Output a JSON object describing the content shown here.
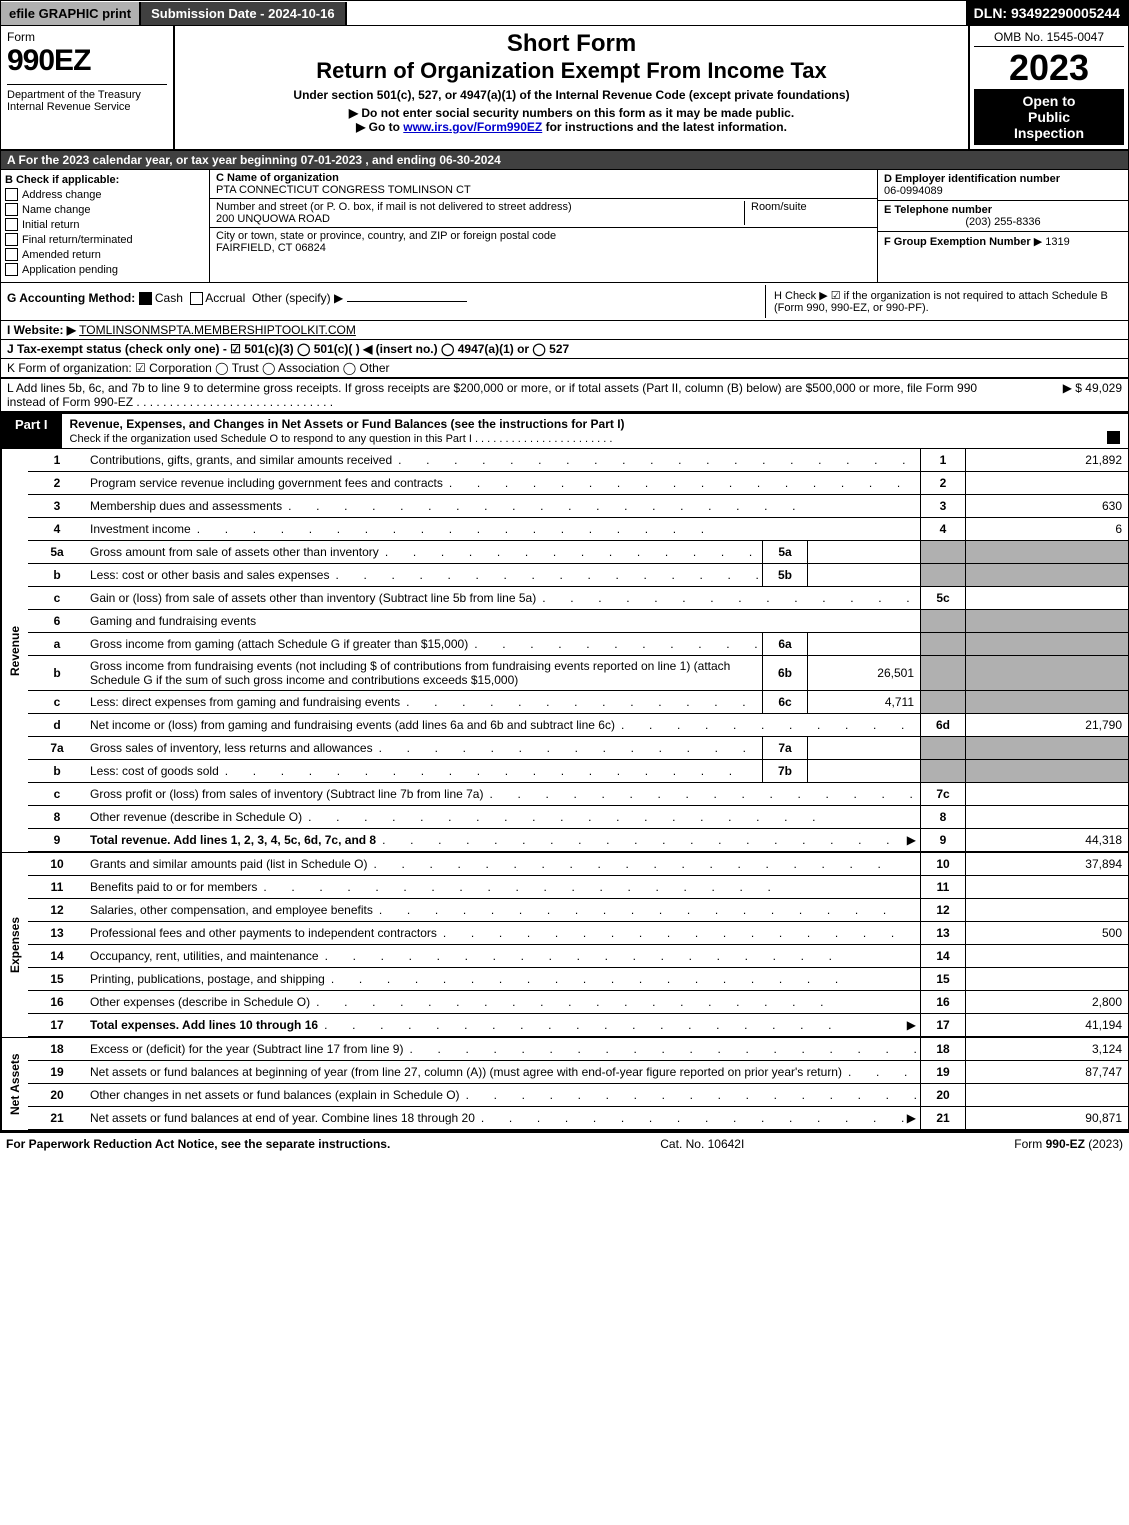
{
  "colors": {
    "black": "#000000",
    "white": "#ffffff",
    "grey_bg": "#b0b0b0",
    "dark_grey": "#404040",
    "link": "#0000cc"
  },
  "top_bar": {
    "efile": "efile GRAPHIC print",
    "submission": "Submission Date - 2024-10-16",
    "dln": "DLN: 93492290005244"
  },
  "header": {
    "form_word": "Form",
    "form_num": "990EZ",
    "dept": "Department of the Treasury",
    "irs": "Internal Revenue Service",
    "short_form": "Short Form",
    "title": "Return of Organization Exempt From Income Tax",
    "under_section": "Under section 501(c), 527, or 4947(a)(1) of the Internal Revenue Code (except private foundations)",
    "note1": "▶ Do not enter social security numbers on this form as it may be made public.",
    "note2": "▶ Go to www.irs.gov/Form990EZ for instructions and the latest information.",
    "note2_link": "www.irs.gov/Form990EZ",
    "omb": "OMB No. 1545-0047",
    "year": "2023",
    "inspect1": "Open to",
    "inspect2": "Public",
    "inspect3": "Inspection"
  },
  "section_a": "A  For the 2023 calendar year, or tax year beginning 07-01-2023  , and ending 06-30-2024",
  "section_b": {
    "title": "B  Check if applicable:",
    "items": [
      "Address change",
      "Name change",
      "Initial return",
      "Final return/terminated",
      "Amended return",
      "Application pending"
    ]
  },
  "section_c": {
    "c_label": "C Name of organization",
    "c_val": "PTA CONNECTICUT CONGRESS TOMLINSON CT",
    "addr_label": "Number and street (or P. O. box, if mail is not delivered to street address)",
    "addr_val": "200 UNQUOWA ROAD",
    "room_label": "Room/suite",
    "city_label": "City or town, state or province, country, and ZIP or foreign postal code",
    "city_val": "FAIRFIELD, CT  06824"
  },
  "section_right": {
    "d_label": "D Employer identification number",
    "d_val": "06-0994089",
    "e_label": "E Telephone number",
    "e_val": "(203) 255-8336",
    "f_label": "F Group Exemption Number",
    "f_val": "▶ 1319"
  },
  "section_g": {
    "label": "G Accounting Method:",
    "cash": "Cash",
    "accrual": "Accrual",
    "other": "Other (specify) ▶"
  },
  "section_h": "H  Check ▶ ☑ if the organization is not required to attach Schedule B (Form 990, 990-EZ, or 990-PF).",
  "section_i": {
    "label": "I Website: ▶",
    "val": "TOMLINSONMSPTA.MEMBERSHIPTOOLKIT.COM"
  },
  "section_j": "J Tax-exempt status (check only one) - ☑ 501(c)(3) ◯ 501(c)(  ) ◀ (insert no.) ◯ 4947(a)(1) or ◯ 527",
  "section_k": "K Form of organization:  ☑ Corporation  ◯ Trust  ◯ Association  ◯ Other",
  "section_l": {
    "text": "L Add lines 5b, 6c, and 7b to line 9 to determine gross receipts. If gross receipts are $200,000 or more, or if total assets (Part II, column (B) below) are $500,000 or more, file Form 990 instead of Form 990-EZ",
    "val": "▶ $ 49,029"
  },
  "part1": {
    "tab": "Part I",
    "title": "Revenue, Expenses, and Changes in Net Assets or Fund Balances (see the instructions for Part I)",
    "check_line": "Check if the organization used Schedule O to respond to any question in this Part I",
    "vertical_rev": "Revenue",
    "vertical_exp": "Expenses",
    "vertical_net": "Net Assets"
  },
  "lines": [
    {
      "n": "1",
      "t": "Contributions, gifts, grants, and similar amounts received",
      "rn": "1",
      "v": "21,892"
    },
    {
      "n": "2",
      "t": "Program service revenue including government fees and contracts",
      "rn": "2",
      "v": ""
    },
    {
      "n": "3",
      "t": "Membership dues and assessments",
      "rn": "3",
      "v": "630"
    },
    {
      "n": "4",
      "t": "Investment income",
      "rn": "4",
      "v": "6"
    },
    {
      "n": "5a",
      "t": "Gross amount from sale of assets other than inventory",
      "mn": "5a",
      "mv": "",
      "grey": true
    },
    {
      "n": "b",
      "t": "Less: cost or other basis and sales expenses",
      "mn": "5b",
      "mv": "",
      "grey": true
    },
    {
      "n": "c",
      "t": "Gain or (loss) from sale of assets other than inventory (Subtract line 5b from line 5a)",
      "rn": "5c",
      "v": ""
    },
    {
      "n": "6",
      "t": "Gaming and fundraising events",
      "grey": true,
      "blank": true
    },
    {
      "n": "a",
      "t": "Gross income from gaming (attach Schedule G if greater than $15,000)",
      "mn": "6a",
      "mv": "",
      "grey": true
    },
    {
      "n": "b",
      "t": "Gross income from fundraising events (not including $                    of contributions from fundraising events reported on line 1) (attach Schedule G if the sum of such gross income and contributions exceeds $15,000)",
      "mn": "6b",
      "mv": "26,501",
      "grey": true
    },
    {
      "n": "c",
      "t": "Less: direct expenses from gaming and fundraising events",
      "mn": "6c",
      "mv": "4,711",
      "grey": true
    },
    {
      "n": "d",
      "t": "Net income or (loss) from gaming and fundraising events (add lines 6a and 6b and subtract line 6c)",
      "rn": "6d",
      "v": "21,790"
    },
    {
      "n": "7a",
      "t": "Gross sales of inventory, less returns and allowances",
      "mn": "7a",
      "mv": "",
      "grey": true
    },
    {
      "n": "b",
      "t": "Less: cost of goods sold",
      "mn": "7b",
      "mv": "",
      "grey": true
    },
    {
      "n": "c",
      "t": "Gross profit or (loss) from sales of inventory (Subtract line 7b from line 7a)",
      "rn": "7c",
      "v": ""
    },
    {
      "n": "8",
      "t": "Other revenue (describe in Schedule O)",
      "rn": "8",
      "v": ""
    },
    {
      "n": "9",
      "t": "Total revenue. Add lines 1, 2, 3, 4, 5c, 6d, 7c, and 8",
      "rn": "9",
      "v": "44,318",
      "bold": true,
      "arrow": true
    }
  ],
  "exp_lines": [
    {
      "n": "10",
      "t": "Grants and similar amounts paid (list in Schedule O)",
      "rn": "10",
      "v": "37,894"
    },
    {
      "n": "11",
      "t": "Benefits paid to or for members",
      "rn": "11",
      "v": ""
    },
    {
      "n": "12",
      "t": "Salaries, other compensation, and employee benefits",
      "rn": "12",
      "v": ""
    },
    {
      "n": "13",
      "t": "Professional fees and other payments to independent contractors",
      "rn": "13",
      "v": "500"
    },
    {
      "n": "14",
      "t": "Occupancy, rent, utilities, and maintenance",
      "rn": "14",
      "v": ""
    },
    {
      "n": "15",
      "t": "Printing, publications, postage, and shipping",
      "rn": "15",
      "v": ""
    },
    {
      "n": "16",
      "t": "Other expenses (describe in Schedule O)",
      "rn": "16",
      "v": "2,800"
    },
    {
      "n": "17",
      "t": "Total expenses. Add lines 10 through 16",
      "rn": "17",
      "v": "41,194",
      "bold": true,
      "arrow": true
    }
  ],
  "net_lines": [
    {
      "n": "18",
      "t": "Excess or (deficit) for the year (Subtract line 17 from line 9)",
      "rn": "18",
      "v": "3,124"
    },
    {
      "n": "19",
      "t": "Net assets or fund balances at beginning of year (from line 27, column (A)) (must agree with end-of-year figure reported on prior year's return)",
      "rn": "19",
      "v": "87,747"
    },
    {
      "n": "20",
      "t": "Other changes in net assets or fund balances (explain in Schedule O)",
      "rn": "20",
      "v": ""
    },
    {
      "n": "21",
      "t": "Net assets or fund balances at end of year. Combine lines 18 through 20",
      "rn": "21",
      "v": "90,871",
      "arrow": true
    }
  ],
  "footer": {
    "left": "For Paperwork Reduction Act Notice, see the separate instructions.",
    "mid": "Cat. No. 10642I",
    "right": "Form 990-EZ (2023)"
  }
}
